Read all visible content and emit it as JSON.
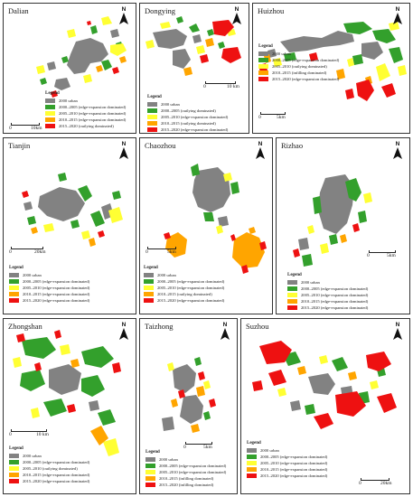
{
  "colors": {
    "urban": "#828282",
    "green": "#33a02c",
    "yellow": "#ffff33",
    "orange": "#ffa500",
    "red": "#ee1111"
  },
  "north_label": "N",
  "legend_heading": "Legend",
  "panels": [
    {
      "key": "dalian",
      "title": "Dalian",
      "scale": {
        "zero": "0",
        "distance": "10km"
      },
      "legend": [
        {
          "color": "urban",
          "label": "2000 urban"
        },
        {
          "color": "green",
          "label": "2000–2005 (edge-expansion dominated)"
        },
        {
          "color": "yellow",
          "label": "2005–2010 (edge-expansion dominated)"
        },
        {
          "color": "orange",
          "label": "2010–2015 (edge-expansion dominated)"
        },
        {
          "color": "red",
          "label": "2015–2020 (outlying dominated)"
        }
      ]
    },
    {
      "key": "dongying",
      "title": "Dongying",
      "scale": {
        "zero": "0",
        "distance": "10 km"
      },
      "legend": [
        {
          "color": "urban",
          "label": "2000 urban"
        },
        {
          "color": "green",
          "label": "2000–2005 (outlying dominated)"
        },
        {
          "color": "yellow",
          "label": "2005–2010 (edge-expansion dominated)"
        },
        {
          "color": "orange",
          "label": "2010–2015 (outlying dominated)"
        },
        {
          "color": "red",
          "label": "2015–2020 (edge-expansion dominated)"
        }
      ]
    },
    {
      "key": "huizhou",
      "title": "Huizhou",
      "scale": {
        "zero": "0",
        "distance": "5km"
      },
      "legend": [
        {
          "color": "urban",
          "label": "2000 urban"
        },
        {
          "color": "green",
          "label": "2000–2005 (edge-expansion dominated)"
        },
        {
          "color": "yellow",
          "label": "2005–2010 (outlying dominated)"
        },
        {
          "color": "orange",
          "label": "2010–2015 (infilling dominated)"
        },
        {
          "color": "red",
          "label": "2015–2020 (edge-expansion dominated)"
        }
      ]
    },
    {
      "key": "tianjin",
      "title": "Tianjin",
      "scale": {
        "zero": "0",
        "distance": "20km"
      },
      "legend": [
        {
          "color": "urban",
          "label": "2000 urban"
        },
        {
          "color": "green",
          "label": "2000–2005 (edge-expansion dominated)"
        },
        {
          "color": "yellow",
          "label": "2005–2010 (edge-expansion dominated)"
        },
        {
          "color": "orange",
          "label": "2010–2015 (edge-expansion dominated)"
        },
        {
          "color": "red",
          "label": "2015–2020 (edge-expansion dominated)"
        }
      ]
    },
    {
      "key": "chaozhou",
      "title": "Chaozhou",
      "scale": {
        "zero": "0",
        "distance": "5km"
      },
      "legend": [
        {
          "color": "urban",
          "label": "2000 urban"
        },
        {
          "color": "green",
          "label": "2000–2005 (edge-expansion dominated)"
        },
        {
          "color": "yellow",
          "label": "2005–2010 (edge-expansion dominated)"
        },
        {
          "color": "orange",
          "label": "2010–2015 (outlying dominated)"
        },
        {
          "color": "red",
          "label": "2015–2020 (edge-expansion dominated)"
        }
      ]
    },
    {
      "key": "rizhao",
      "title": "Rizhao",
      "scale": {
        "zero": "0",
        "distance": "5km"
      },
      "legend": [
        {
          "color": "urban",
          "label": "2000 urban"
        },
        {
          "color": "green",
          "label": "2000–2005 (edge-expansion dominated)"
        },
        {
          "color": "yellow",
          "label": "2005–2010 (edge-expansion dominated)"
        },
        {
          "color": "orange",
          "label": "2010–2015 (edge-expansion dominated)"
        },
        {
          "color": "red",
          "label": "2015–2020 (edge-expansion dominated)"
        }
      ]
    },
    {
      "key": "zhongshan",
      "title": "Zhongshan",
      "scale": {
        "zero": "0",
        "distance": "10 km"
      },
      "legend": [
        {
          "color": "urban",
          "label": "2000 urban"
        },
        {
          "color": "green",
          "label": "2000–2005 (edge-expansion dominated)"
        },
        {
          "color": "yellow",
          "label": "2005–2010 (outlying dominated)"
        },
        {
          "color": "orange",
          "label": "2010–2015 (edge-expansion dominated)"
        },
        {
          "color": "red",
          "label": "2015–2020 (edge-expansion dominated)"
        }
      ]
    },
    {
      "key": "taizhong",
      "title": "Taizhong",
      "scale": {
        "zero": "0",
        "distance": "5km"
      },
      "legend": [
        {
          "color": "urban",
          "label": "2000 urban"
        },
        {
          "color": "green",
          "label": "2000–2005 (edge-expansion dominated)"
        },
        {
          "color": "yellow",
          "label": "2005–2010 (edge-expansion dominated)"
        },
        {
          "color": "orange",
          "label": "2010–2015 (infilling dominated)"
        },
        {
          "color": "red",
          "label": "2015–2020 (infilling dominated)"
        }
      ]
    },
    {
      "key": "suzhou",
      "title": "Suzhou",
      "scale": {
        "zero": "0",
        "distance": "20km"
      },
      "legend": [
        {
          "color": "urban",
          "label": "2000 urban"
        },
        {
          "color": "green",
          "label": "2000–2005 (edge-expansion dominated)"
        },
        {
          "color": "yellow",
          "label": "2005–2010 (edge-expansion dominated)"
        },
        {
          "color": "orange",
          "label": "2010–2015 (edge-expansion dominated)"
        },
        {
          "color": "red",
          "label": "2015–2020 (edge-expansion dominated)"
        }
      ]
    }
  ]
}
